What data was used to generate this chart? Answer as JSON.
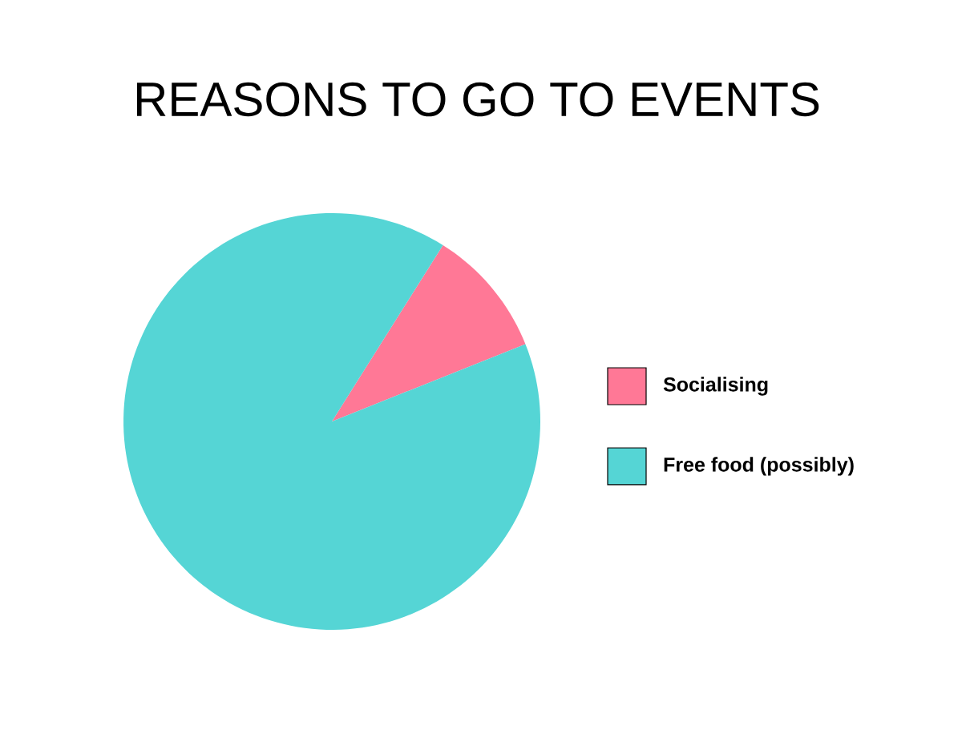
{
  "chart_data": {
    "type": "pie",
    "title": "REASONS TO GO TO EVENTS",
    "categories": [
      "Socialising",
      "Free food (possibly)"
    ],
    "values": [
      10,
      90
    ],
    "colors": [
      "#ff7896",
      "#55d5d5"
    ],
    "legend": "right"
  }
}
